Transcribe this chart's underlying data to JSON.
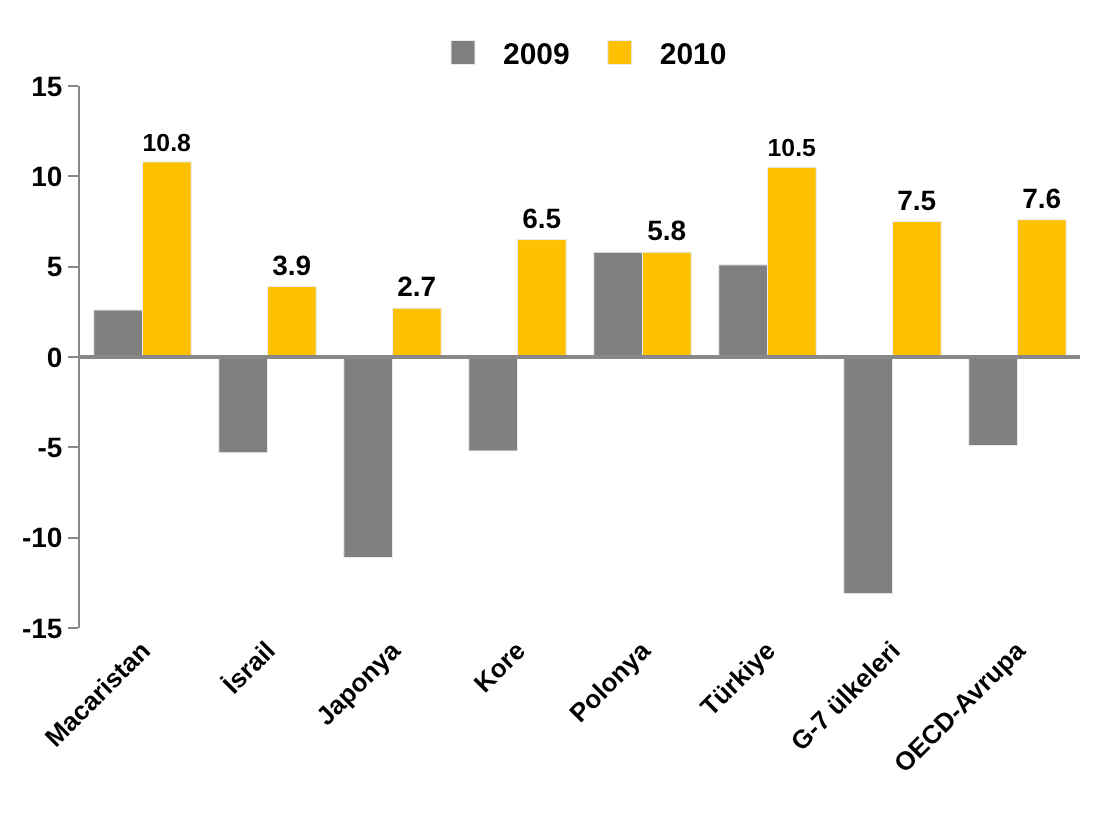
{
  "chart_data": {
    "type": "bar",
    "categories": [
      "Macaristan",
      "İsrail",
      "Japonya",
      "Kore",
      "Polonya",
      "Türkiye",
      "G-7 ülkeleri",
      "OECD-Avrupa"
    ],
    "series": [
      {
        "name": "2009",
        "color": "#808080",
        "values": [
          2.6,
          -5.3,
          -11.1,
          -5.2,
          5.8,
          5.1,
          -13.1,
          -4.9
        ]
      },
      {
        "name": "2010",
        "color": "#ffc000",
        "values": [
          10.8,
          3.9,
          2.7,
          6.5,
          5.8,
          10.5,
          7.5,
          7.6
        ],
        "value_labels": [
          "10.8",
          "3.9",
          "2.7",
          "6.5",
          "5.8",
          "10.5",
          "7.5",
          "7.6"
        ]
      }
    ],
    "ylim": [
      -15,
      15
    ],
    "yticks": [
      -15,
      -10,
      -5,
      0,
      5,
      10,
      15
    ],
    "legend": "top"
  }
}
